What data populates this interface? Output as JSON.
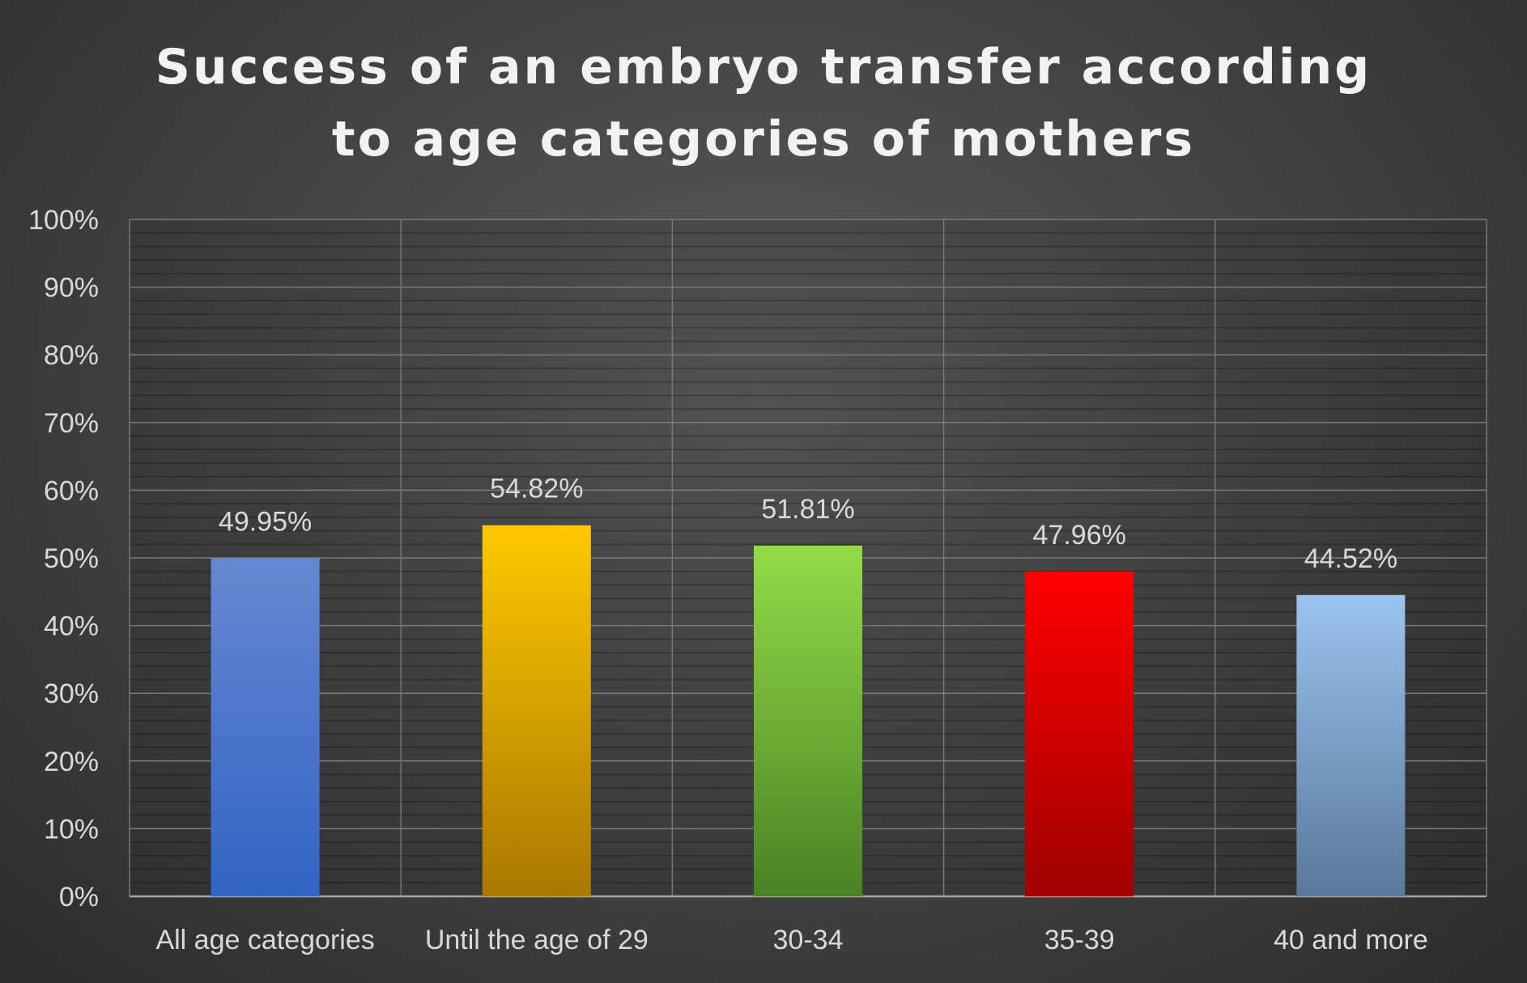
{
  "chart_data": {
    "type": "bar",
    "title_lines": [
      "Success of an embryo transfer according",
      "to age categories of mothers"
    ],
    "categories": [
      "All age categories",
      "Until the age of 29",
      "30-34",
      "35-39",
      "40 and more"
    ],
    "values": [
      49.95,
      54.82,
      51.81,
      47.96,
      44.52
    ],
    "data_labels": [
      "49.95%",
      "54.82%",
      "51.81%",
      "47.96%",
      "44.52%"
    ],
    "ylim": [
      0,
      100
    ],
    "y_ticks": [
      "0%",
      "10%",
      "20%",
      "30%",
      "40%",
      "50%",
      "60%",
      "70%",
      "80%",
      "90%",
      "100%"
    ],
    "grid": true,
    "colors": [
      {
        "top": "#6588d2",
        "bottom": "#3264c4"
      },
      {
        "top": "#ffc800",
        "bottom": "#a87800"
      },
      {
        "top": "#92dc48",
        "bottom": "#4a8224"
      },
      {
        "top": "#ff0000",
        "bottom": "#a00000"
      },
      {
        "top": "#9ac3ef",
        "bottom": "#5a7899"
      }
    ]
  }
}
